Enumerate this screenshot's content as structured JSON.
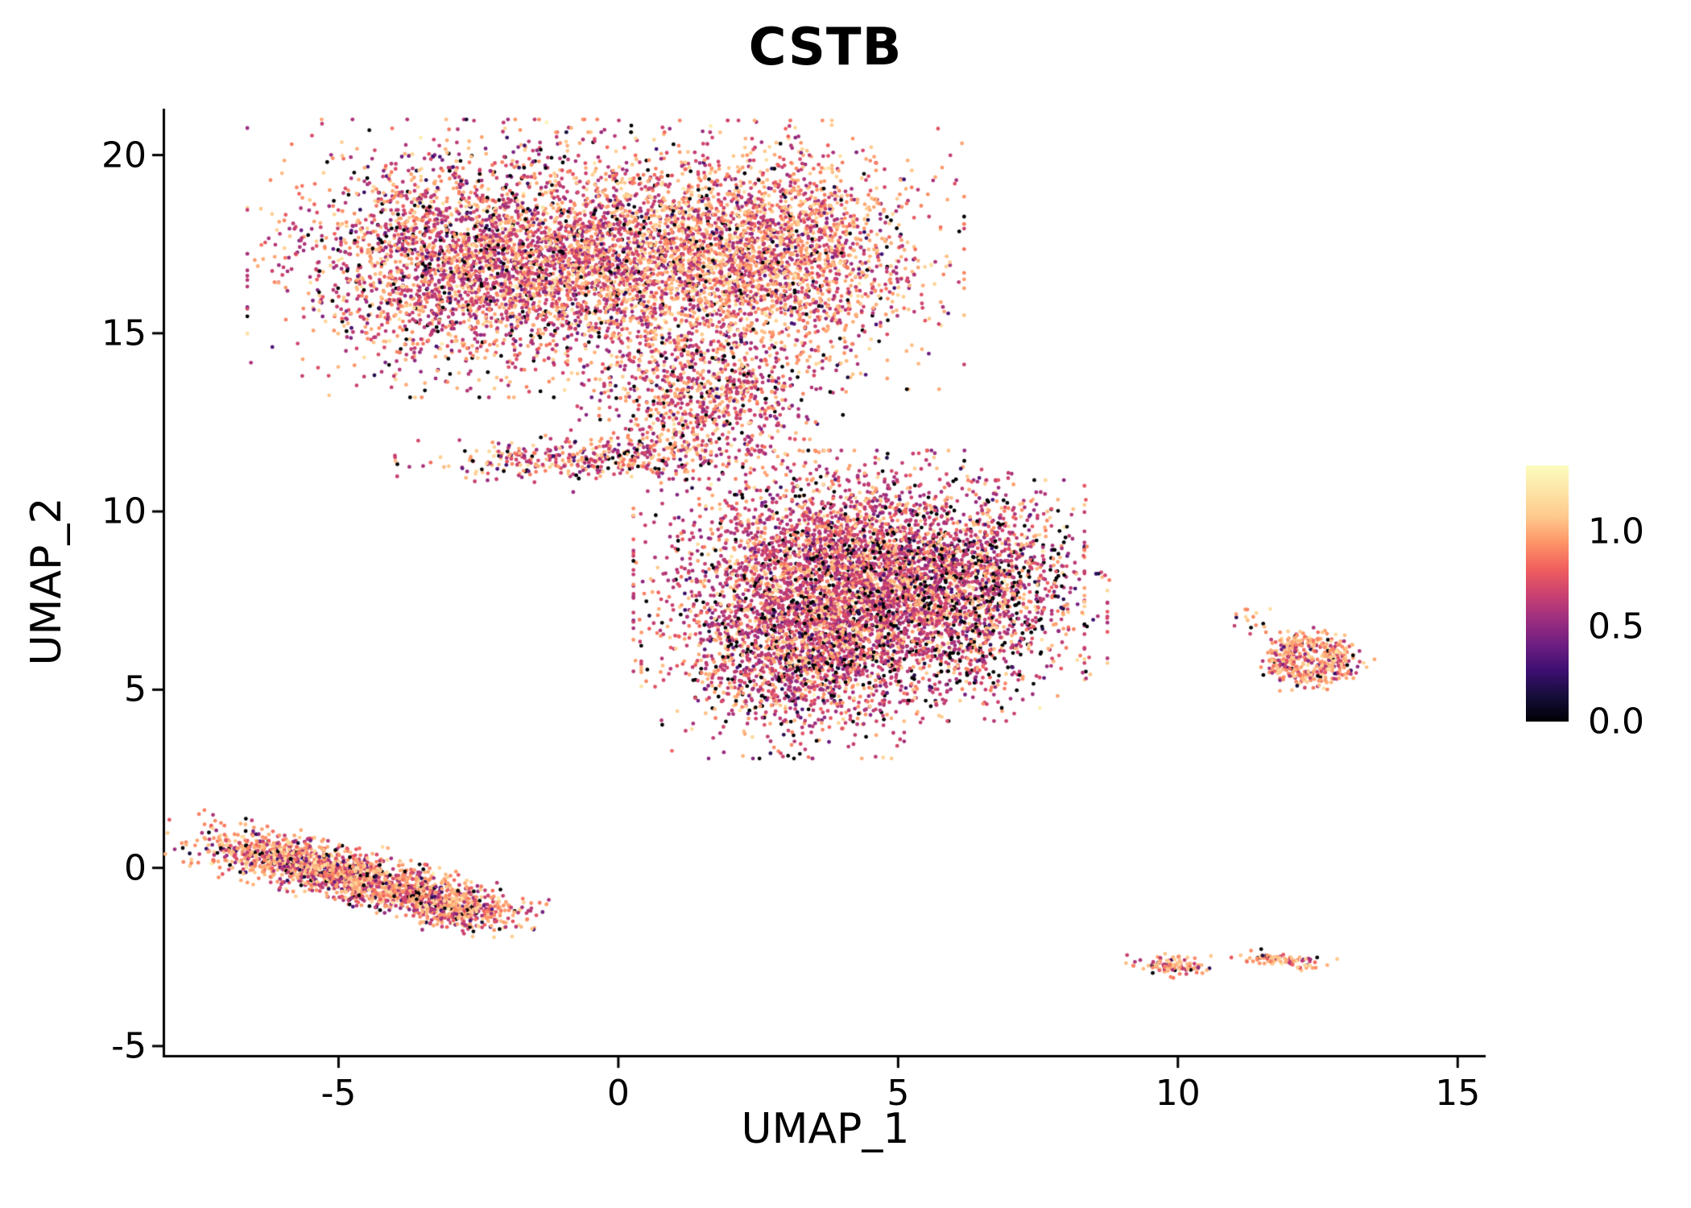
{
  "chart_data": {
    "type": "scatter",
    "title": "CSTB",
    "xlabel": "UMAP_1",
    "ylabel": "UMAP_2",
    "x_ticks": [
      -5,
      0,
      5,
      10,
      15
    ],
    "y_ticks": [
      -5,
      0,
      5,
      10,
      15,
      20
    ],
    "x_range": [
      -8.1,
      15.5
    ],
    "y_range": [
      -5.25,
      21.3
    ],
    "grid": false,
    "background": "#ffffff",
    "axis_color": "#000000",
    "point_radius_px": 2.4,
    "seed": 42,
    "colorbar": {
      "position": "right",
      "colormap": "magma",
      "vmin": 0.0,
      "vmax": 1.35,
      "tick_labels": [
        "1.0",
        "0.5",
        "0.0"
      ],
      "tick_values": [
        1.0,
        0.5,
        0.0
      ],
      "stops": [
        [
          0.0,
          "#000004"
        ],
        [
          0.1,
          "#160e3a"
        ],
        [
          0.2,
          "#3e0f72"
        ],
        [
          0.3,
          "#6e1e81"
        ],
        [
          0.4,
          "#9d2e7f"
        ],
        [
          0.5,
          "#cc4270"
        ],
        [
          0.6,
          "#f1605d"
        ],
        [
          0.7,
          "#fd9567"
        ],
        [
          0.8,
          "#fec98d"
        ],
        [
          0.9,
          "#fde4a6"
        ],
        [
          1.0,
          "#fcfdbf"
        ]
      ]
    },
    "value_model": {
      "lo_mean": 0.63,
      "lo_sd": 0.07,
      "hi_mean": 1.0,
      "hi_sd": 0.1,
      "low_range": [
        0.12,
        0.5
      ]
    },
    "clusters": [
      {
        "name": "upper-blob-left",
        "shape": "gauss",
        "cx": -2.6,
        "cy": 17.1,
        "sx": 1.55,
        "sy": 1.5,
        "angle_deg": 0,
        "count": 2900,
        "p_zero": 0.07,
        "p_low": 0.05,
        "hi_frac": 0.5
      },
      {
        "name": "upper-blob-mid",
        "shape": "gauss",
        "cx": 0.1,
        "cy": 17.0,
        "sx": 1.2,
        "sy": 1.4,
        "angle_deg": 0,
        "count": 1600,
        "p_zero": 0.06,
        "p_low": 0.05,
        "hi_frac": 0.55
      },
      {
        "name": "upper-blob-right",
        "shape": "gauss",
        "cx": 2.8,
        "cy": 17.2,
        "sx": 1.3,
        "sy": 1.45,
        "angle_deg": 0,
        "count": 2400,
        "p_zero": 0.04,
        "p_low": 0.04,
        "hi_frac": 0.65
      },
      {
        "name": "upper-blob-neck",
        "shape": "gauss",
        "cx": 1.5,
        "cy": 13.2,
        "sx": 1.0,
        "sy": 1.05,
        "angle_deg": 0,
        "count": 900,
        "p_zero": 0.09,
        "p_low": 0.05,
        "hi_frac": 0.5
      },
      {
        "name": "upper-left-strip",
        "shape": "gauss",
        "cx": -0.6,
        "cy": 11.5,
        "sx": 1.3,
        "sy": 0.28,
        "angle_deg": 4,
        "count": 380,
        "p_zero": 0.07,
        "p_low": 0.05,
        "hi_frac": 0.5
      },
      {
        "name": "central-blob-main",
        "shape": "gauss",
        "cx": 4.3,
        "cy": 8.2,
        "sx": 1.55,
        "sy": 1.35,
        "angle_deg": 0,
        "count": 4300,
        "p_zero": 0.07,
        "p_low": 0.05,
        "hi_frac": 0.38
      },
      {
        "name": "central-blob-lower",
        "shape": "gauss",
        "cx": 3.4,
        "cy": 5.8,
        "sx": 1.15,
        "sy": 1.05,
        "angle_deg": 0,
        "count": 1500,
        "p_zero": 0.12,
        "p_low": 0.06,
        "hi_frac": 0.42
      },
      {
        "name": "central-blob-right",
        "shape": "gauss",
        "cx": 6.4,
        "cy": 7.5,
        "sx": 0.9,
        "sy": 1.3,
        "angle_deg": 0,
        "count": 1000,
        "p_zero": 0.22,
        "p_low": 0.08,
        "hi_frac": 0.45
      },
      {
        "name": "right-ring",
        "shape": "ring",
        "cx": 12.35,
        "cy": 5.85,
        "r0": 0.55,
        "rsd": 0.2,
        "squash": 0.9,
        "angle_deg": 0,
        "count": 430,
        "p_zero": 0.03,
        "p_low": 0.03,
        "hi_frac": 0.78
      },
      {
        "name": "right-ring-side",
        "shape": "gauss",
        "cx": 11.4,
        "cy": 7.0,
        "sx": 0.25,
        "sy": 0.2,
        "angle_deg": 0,
        "count": 16,
        "p_zero": 0.06,
        "p_low": 0.05,
        "hi_frac": 0.7
      },
      {
        "name": "lower-left-strip-a",
        "shape": "gauss",
        "cx": -5.8,
        "cy": 0.2,
        "sx": 0.95,
        "sy": 0.33,
        "angle_deg": -18,
        "count": 850,
        "p_zero": 0.05,
        "p_low": 0.05,
        "hi_frac": 0.72
      },
      {
        "name": "lower-left-strip-b",
        "shape": "gauss",
        "cx": -4.0,
        "cy": -0.55,
        "sx": 1.05,
        "sy": 0.3,
        "angle_deg": -18,
        "count": 950,
        "p_zero": 0.06,
        "p_low": 0.05,
        "hi_frac": 0.7
      },
      {
        "name": "lower-left-strip-c",
        "shape": "gauss",
        "cx": -2.9,
        "cy": -1.2,
        "sx": 0.55,
        "sy": 0.25,
        "angle_deg": -12,
        "count": 280,
        "p_zero": 0.06,
        "p_low": 0.05,
        "hi_frac": 0.7
      },
      {
        "name": "small-bottom-a",
        "shape": "gauss",
        "cx": 9.9,
        "cy": -2.75,
        "sx": 0.32,
        "sy": 0.13,
        "angle_deg": -5,
        "count": 110,
        "p_zero": 0.05,
        "p_low": 0.04,
        "hi_frac": 0.72
      },
      {
        "name": "small-bottom-b",
        "shape": "gauss",
        "cx": 11.9,
        "cy": -2.6,
        "sx": 0.38,
        "sy": 0.1,
        "angle_deg": -8,
        "count": 85,
        "p_zero": 0.05,
        "p_low": 0.04,
        "hi_frac": 0.72
      },
      {
        "name": "outlier-a",
        "shape": "gauss",
        "cx": 5.0,
        "cy": 3.6,
        "sx": 0.07,
        "sy": 0.07,
        "angle_deg": 0,
        "count": 3,
        "p_zero": 0.0,
        "p_low": 0.0,
        "hi_frac": 0.4
      },
      {
        "name": "outlier-b",
        "shape": "gauss",
        "cx": 8.6,
        "cy": 8.2,
        "sx": 0.12,
        "sy": 0.1,
        "angle_deg": 0,
        "count": 5,
        "p_zero": 0.1,
        "p_low": 0.1,
        "hi_frac": 0.5
      }
    ]
  }
}
